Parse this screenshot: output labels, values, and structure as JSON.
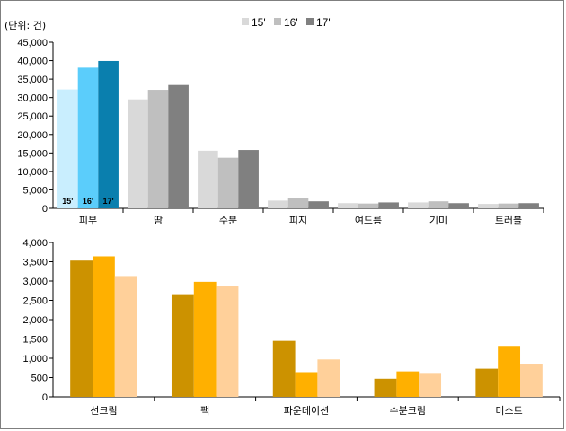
{
  "chart_data": [
    {
      "type": "bar",
      "unit_label": "(단위: 건)",
      "categories": [
        "피부",
        "땀",
        "수분",
        "피지",
        "여드름",
        "기미",
        "트러블"
      ],
      "series": [
        {
          "name": "15'",
          "values": [
            32200,
            29500,
            15600,
            2100,
            1400,
            1600,
            1200
          ]
        },
        {
          "name": "16'",
          "values": [
            38100,
            32100,
            13700,
            2800,
            1300,
            1900,
            1300
          ]
        },
        {
          "name": "17'",
          "values": [
            39900,
            33400,
            15800,
            1900,
            1600,
            1400,
            1400
          ]
        }
      ],
      "in_bar_labels": [
        "15'",
        "16'",
        "17'"
      ],
      "ylim": [
        0,
        45000
      ],
      "yticks": [
        "0",
        "5,000",
        "10,000",
        "15,000",
        "20,000",
        "25,000",
        "30,000",
        "35,000",
        "40,000",
        "45,000"
      ],
      "legend_position": "top",
      "colors": {
        "series": [
          "#d9d9d9",
          "#bfbfbf",
          "#808080"
        ],
        "first_category": [
          "#c9eefe",
          "#5bcdfb",
          "#0a7fae"
        ]
      }
    },
    {
      "type": "bar",
      "categories": [
        "선크림",
        "팩",
        "파운데이션",
        "수분크림",
        "미스트"
      ],
      "series": [
        {
          "values": [
            3530,
            2660,
            1450,
            470,
            730
          ]
        },
        {
          "values": [
            3640,
            2980,
            640,
            660,
            1320
          ]
        },
        {
          "values": [
            3130,
            2860,
            970,
            620,
            860
          ]
        }
      ],
      "ylim": [
        0,
        4000
      ],
      "yticks": [
        "0",
        "500",
        "1,000",
        "1,500",
        "2,000",
        "2,500",
        "3,000",
        "3,500",
        "4,000"
      ],
      "colors": {
        "series": [
          "#cc9200",
          "#ffb000",
          "#ffd09a"
        ]
      }
    }
  ]
}
